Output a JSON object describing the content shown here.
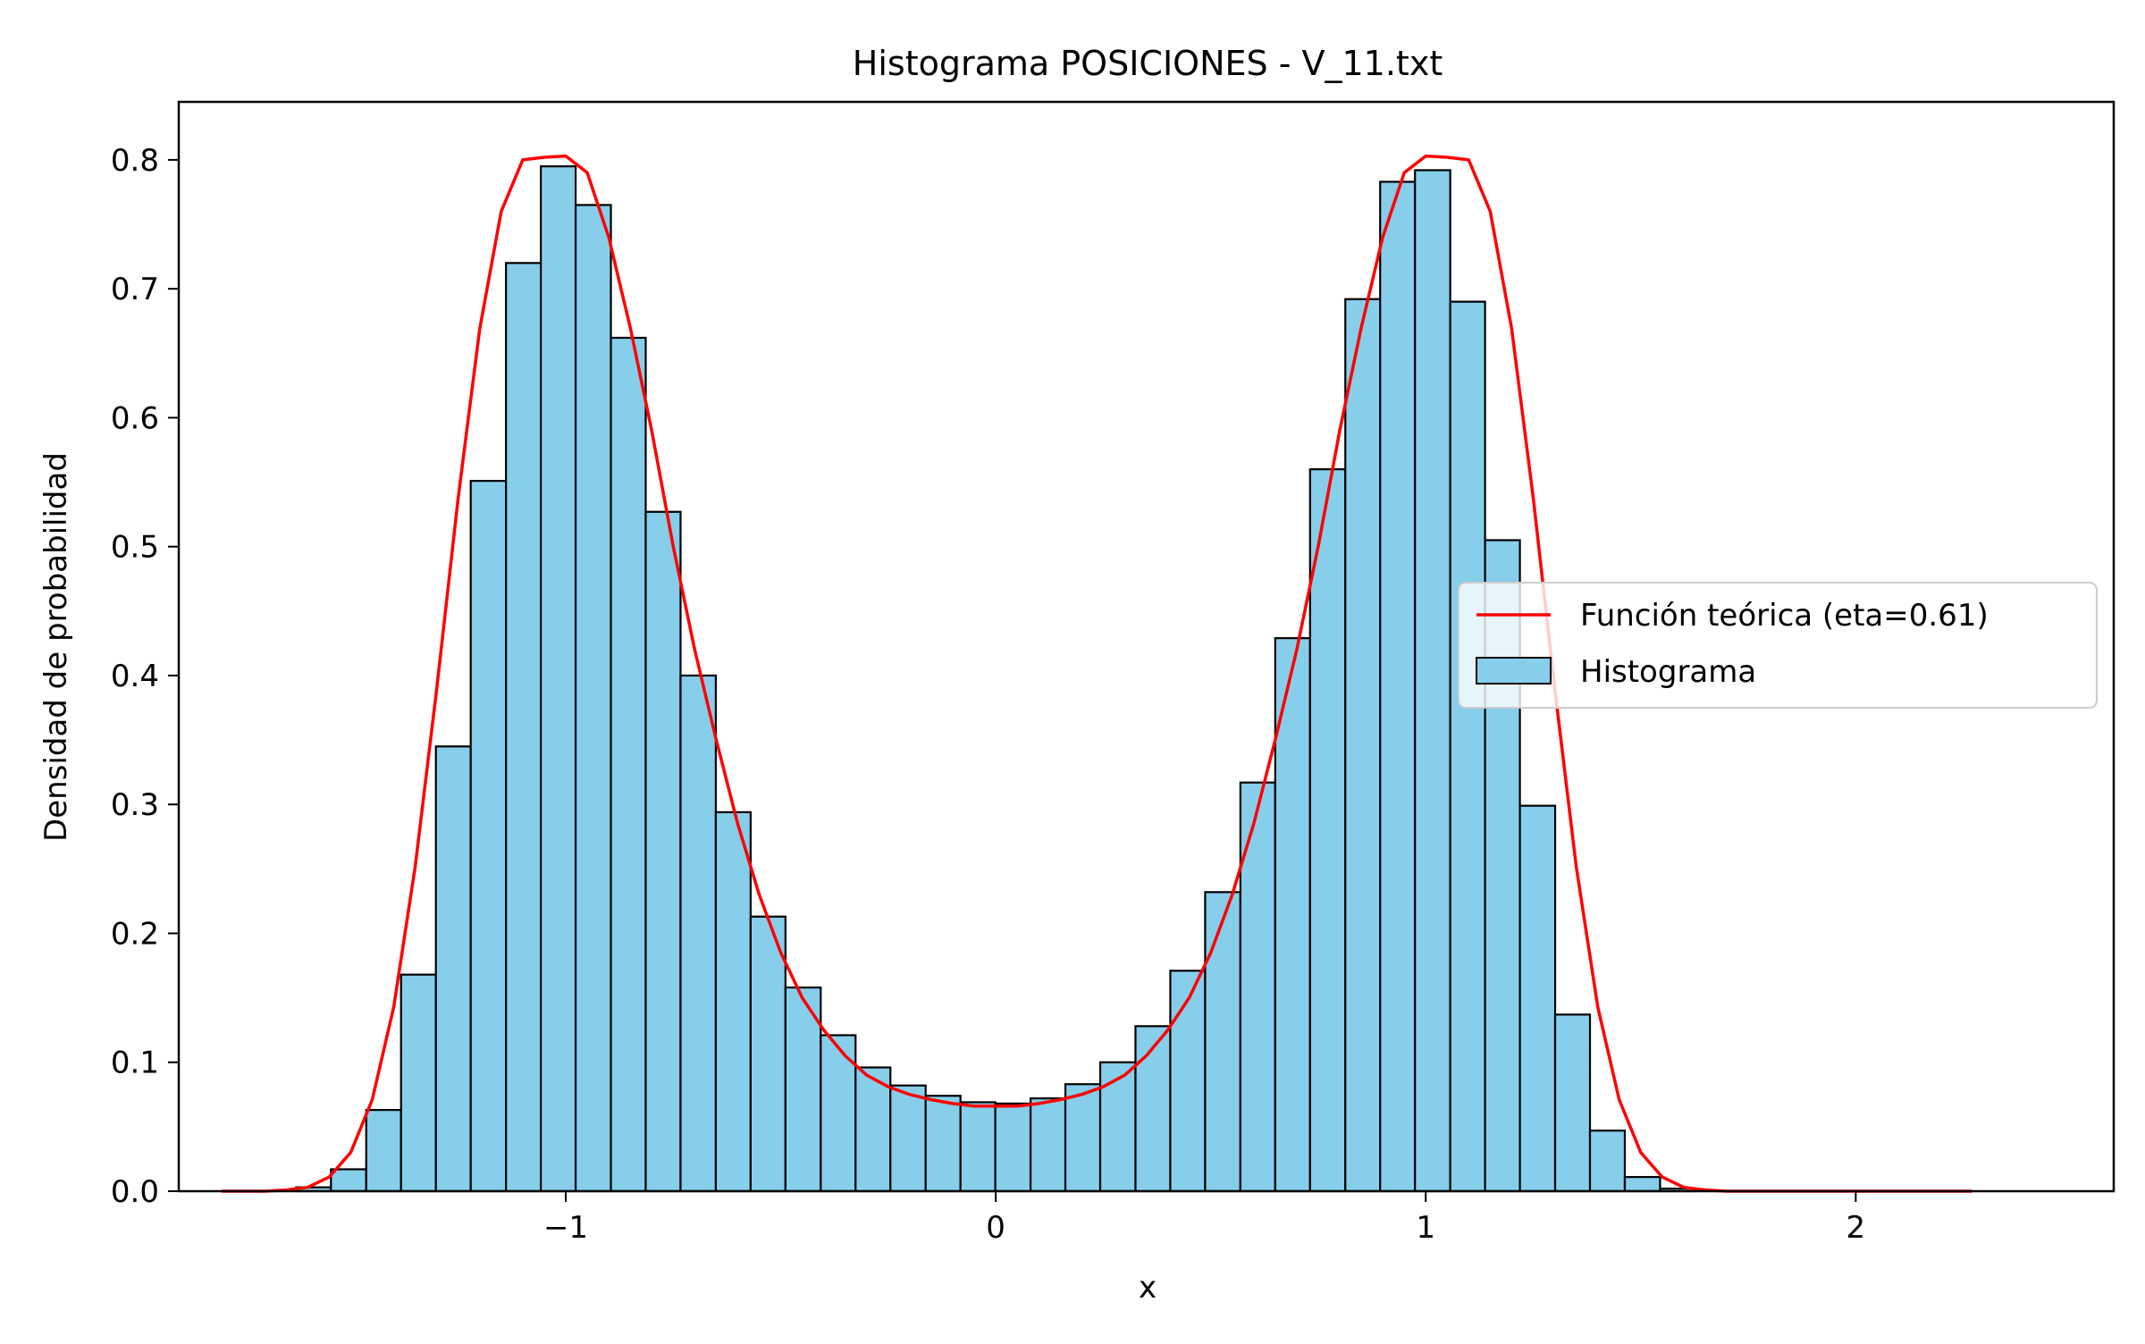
{
  "chart_data": {
    "type": "bar",
    "title": "Histograma POSICIONES - V_11.txt",
    "xlabel": "x",
    "ylabel": "Densidad de probabilidad",
    "xlim": [
      -1.9,
      2.6
    ],
    "ylim": [
      0,
      0.845
    ],
    "xticks": [
      -1,
      0,
      1,
      2
    ],
    "xtick_labels": [
      "−1",
      "0",
      "1",
      "2"
    ],
    "yticks": [
      0.0,
      0.1,
      0.2,
      0.3,
      0.4,
      0.5,
      0.6,
      0.7,
      0.8
    ],
    "ytick_labels": [
      "0.0",
      "0.1",
      "0.2",
      "0.3",
      "0.4",
      "0.5",
      "0.6",
      "0.7",
      "0.8"
    ],
    "grid": false,
    "legend_position": "center-right",
    "colors": {
      "bar_fill": "#87ceeb",
      "bar_edge": "#000000",
      "curve": "#ff0000"
    },
    "histogram": {
      "name": "Histograma",
      "bin_edges": [
        -1.627,
        -1.546,
        -1.464,
        -1.383,
        -1.302,
        -1.221,
        -1.139,
        -1.058,
        -0.977,
        -0.895,
        -0.814,
        -0.733,
        -0.651,
        -0.57,
        -0.489,
        -0.407,
        -0.326,
        -0.245,
        -0.163,
        -0.082,
        -0.001,
        0.081,
        0.162,
        0.243,
        0.325,
        0.406,
        0.487,
        0.569,
        0.65,
        0.731,
        0.813,
        0.894,
        0.975,
        1.057,
        1.138,
        1.219,
        1.301,
        1.382,
        1.463,
        1.545,
        1.626
      ],
      "values": [
        0.003,
        0.017,
        0.063,
        0.168,
        0.345,
        0.551,
        0.72,
        0.795,
        0.765,
        0.662,
        0.527,
        0.4,
        0.294,
        0.213,
        0.158,
        0.121,
        0.096,
        0.082,
        0.074,
        0.069,
        0.068,
        0.072,
        0.083,
        0.1,
        0.128,
        0.171,
        0.232,
        0.317,
        0.429,
        0.56,
        0.692,
        0.783,
        0.792,
        0.69,
        0.505,
        0.299,
        0.137,
        0.047,
        0.011,
        0.002
      ]
    },
    "series": [
      {
        "name": "Función teórica (eta=0.61)",
        "x": [
          -1.8,
          -1.75,
          -1.7,
          -1.65,
          -1.6,
          -1.55,
          -1.5,
          -1.45,
          -1.4,
          -1.35,
          -1.3,
          -1.25,
          -1.2,
          -1.15,
          -1.1,
          -1.05,
          -1.0,
          -0.95,
          -0.9,
          -0.85,
          -0.8,
          -0.75,
          -0.7,
          -0.65,
          -0.6,
          -0.55,
          -0.5,
          -0.45,
          -0.4,
          -0.35,
          -0.3,
          -0.25,
          -0.2,
          -0.15,
          -0.1,
          -0.05,
          0.0,
          0.05,
          0.1,
          0.15,
          0.2,
          0.25,
          0.3,
          0.35,
          0.4,
          0.45,
          0.5,
          0.55,
          0.6,
          0.65,
          0.7,
          0.75,
          0.8,
          0.85,
          0.9,
          0.95,
          1.0,
          1.05,
          1.1,
          1.15,
          1.2,
          1.25,
          1.3,
          1.35,
          1.4,
          1.45,
          1.5,
          1.55,
          1.6,
          1.65,
          1.7,
          1.8,
          2.0,
          2.27
        ],
        "y": [
          0.0,
          0.0,
          0.0,
          0.001,
          0.003,
          0.011,
          0.03,
          0.071,
          0.143,
          0.252,
          0.39,
          0.538,
          0.669,
          0.76,
          0.8,
          0.802,
          0.803,
          0.79,
          0.74,
          0.67,
          0.59,
          0.5,
          0.42,
          0.35,
          0.285,
          0.23,
          0.185,
          0.15,
          0.125,
          0.105,
          0.09,
          0.081,
          0.075,
          0.071,
          0.068,
          0.066,
          0.066,
          0.066,
          0.068,
          0.071,
          0.075,
          0.081,
          0.09,
          0.105,
          0.125,
          0.15,
          0.185,
          0.23,
          0.285,
          0.35,
          0.42,
          0.5,
          0.59,
          0.67,
          0.74,
          0.79,
          0.803,
          0.802,
          0.8,
          0.76,
          0.669,
          0.538,
          0.39,
          0.252,
          0.143,
          0.071,
          0.03,
          0.011,
          0.003,
          0.001,
          0.0,
          0.0,
          0.0,
          0.0
        ]
      }
    ],
    "legend": [
      "Función teórica (eta=0.61)",
      "Histograma"
    ]
  }
}
